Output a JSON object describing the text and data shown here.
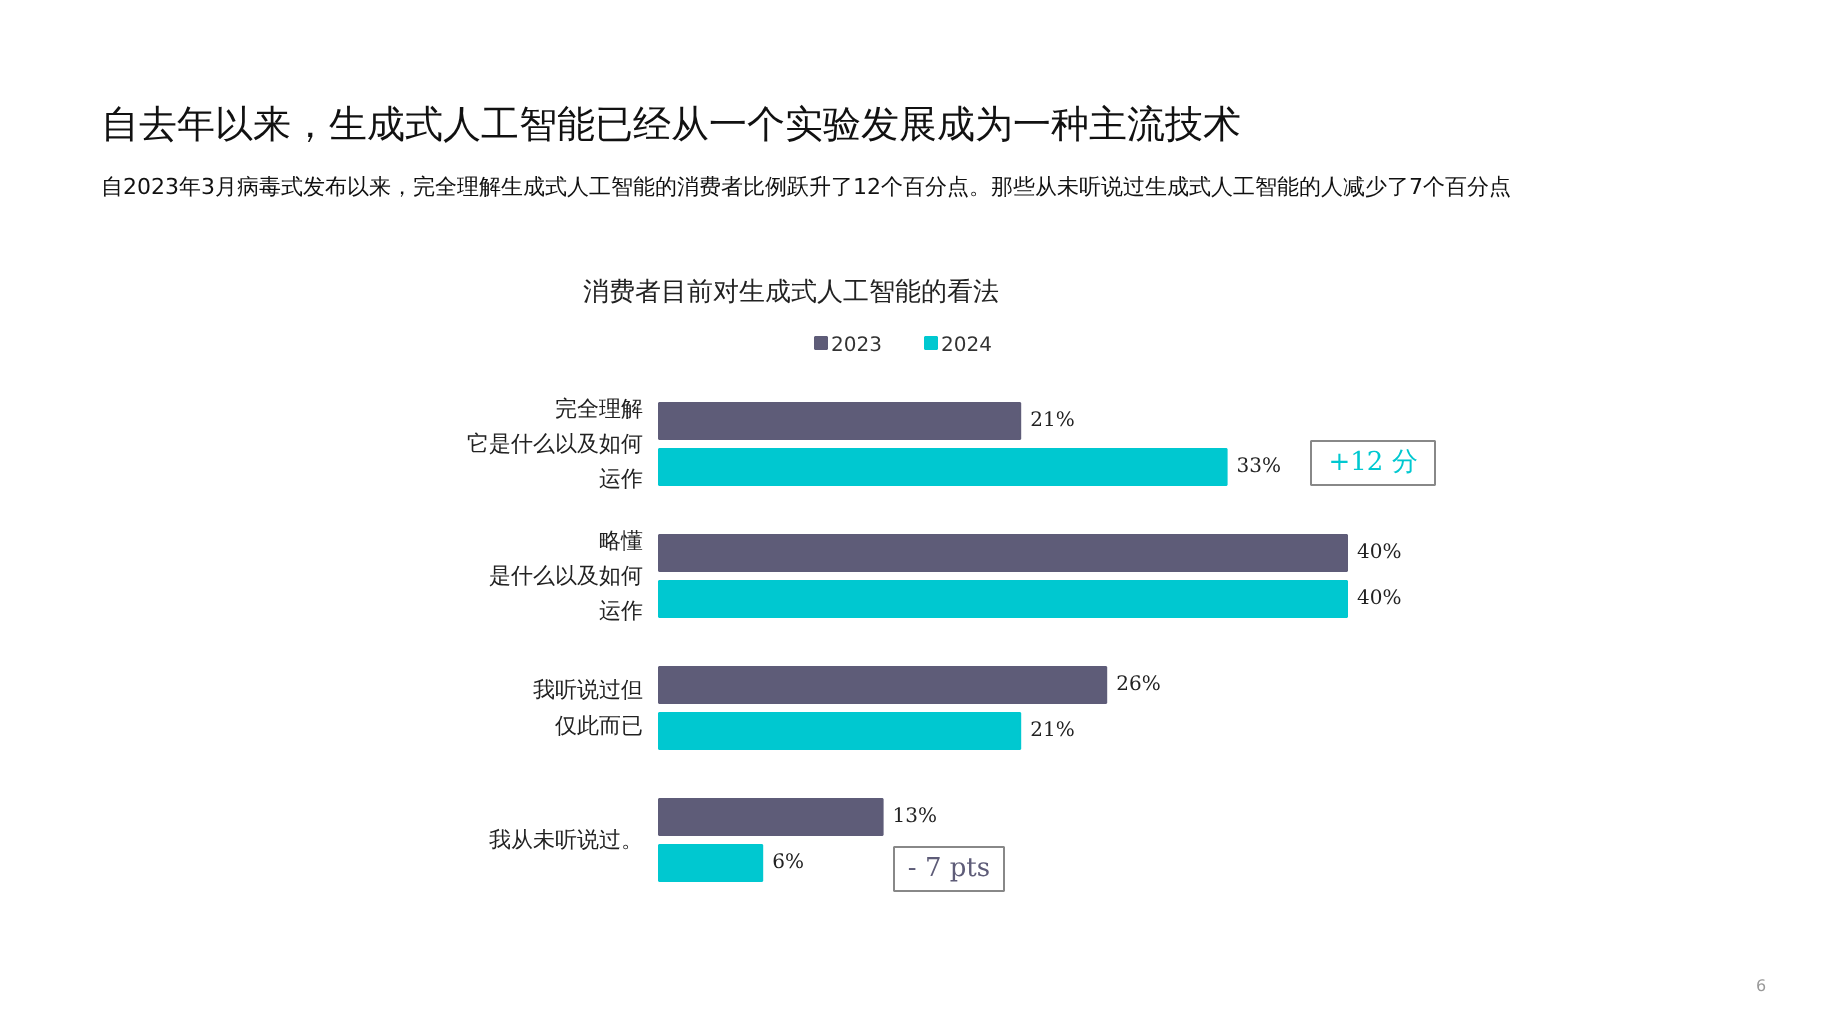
{
  "chart_data": {
    "type": "bar",
    "orientation": "horizontal",
    "title": "自去年以来，生成式人工智能已经从一个实验发展成为一种主流技术",
    "subtitle": "自2023年3月病毒式发布以来，完全理解生成式人工智能的消费者比例跃升了12个百分点。那些从未听说过生成式人工智能的人减少了7个百分点",
    "categories": [
      "完全理解它是什么以及如何运作",
      "略懂是什么以及如何运作",
      "我听说过但仅此而已",
      "我从未听说过。"
    ],
    "series": [
      {
        "name": "2023",
        "color": "#5e5c78",
        "values": [
          21,
          40,
          26,
          13
        ],
        "value_labels": [
          "21%",
          "40%",
          "26%",
          "13%"
        ]
      },
      {
        "name": "2024",
        "color": "#00c8d0",
        "values": [
          33,
          40,
          21,
          6
        ],
        "value_labels": [
          "33%",
          "40%",
          "21%",
          "6%"
        ]
      }
    ],
    "legend": "top",
    "annotations": [
      "消费者目前对生成式人工智能的看法",
      "+12 分",
      "- 7 pts",
      "6"
    ]
  }
}
